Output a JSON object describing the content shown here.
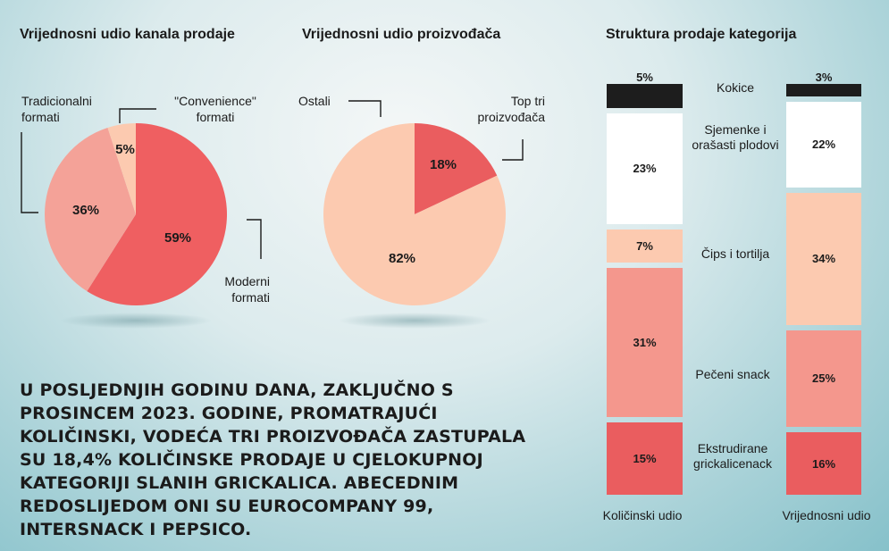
{
  "colors": {
    "modern": "#ef5f61",
    "traditional": "#f4a298",
    "convenience": "#fccab0",
    "pie2_others": "#fccab0",
    "pie2_top3": "#ea5d5f",
    "kokice": "#1d1d1d",
    "sjemenke": "#ffffff",
    "cips": "#fccab0",
    "peceni": "#f4978d",
    "ekstrudirane": "#ea5d5f"
  },
  "paragraph": "U posljednjih godinu dana, zaključno s prosincem 2023. godine, promatrajući količinski, vodeća tri proizvođača zastupala su 18,4% količinske prodaje u cjelokupnoj kategoriji slanih grickalica. Abecednim redoslijedom oni su Eurocompany 99, Intersnack i PepsiCo.",
  "chart_data": [
    {
      "type": "pie",
      "title": "Vrijednosni udio kanala prodaje",
      "slices": [
        {
          "label": "Moderni formati",
          "value": 59,
          "value_label": "59%"
        },
        {
          "label": "Tradicionalni formati",
          "value": 36,
          "value_label": "36%"
        },
        {
          "label": "\"Convenience\" formati",
          "value": 5,
          "value_label": "5%"
        }
      ]
    },
    {
      "type": "pie",
      "title": "Vrijednosni udio proizvođača",
      "slices": [
        {
          "label": "Top tri proizvođača",
          "value": 18,
          "value_label": "18%"
        },
        {
          "label": "Ostali",
          "value": 82,
          "value_label": "82%"
        }
      ]
    },
    {
      "type": "bar",
      "stacked": true,
      "title": "Struktura prodaje kategorija",
      "categories": [
        "Količinski udio",
        "Vrijednosni udio"
      ],
      "series": [
        {
          "name": "Kokice",
          "values": [
            5,
            3
          ],
          "value_labels": [
            "5%",
            "3%"
          ]
        },
        {
          "name": "Sjemenke i orašasti plodovi",
          "values": [
            23,
            22
          ],
          "value_labels": [
            "23%",
            "22%"
          ]
        },
        {
          "name": "Čips i tortilja",
          "values": [
            7,
            34
          ],
          "value_labels": [
            "7%",
            "34%"
          ]
        },
        {
          "name": "Pečeni snack",
          "values": [
            31,
            25
          ],
          "value_labels": [
            "31%",
            "25%"
          ]
        },
        {
          "name": "Ekstrudirane grickalicenack",
          "values": [
            15,
            16
          ],
          "value_labels": [
            "15%",
            "16%"
          ]
        }
      ]
    }
  ]
}
